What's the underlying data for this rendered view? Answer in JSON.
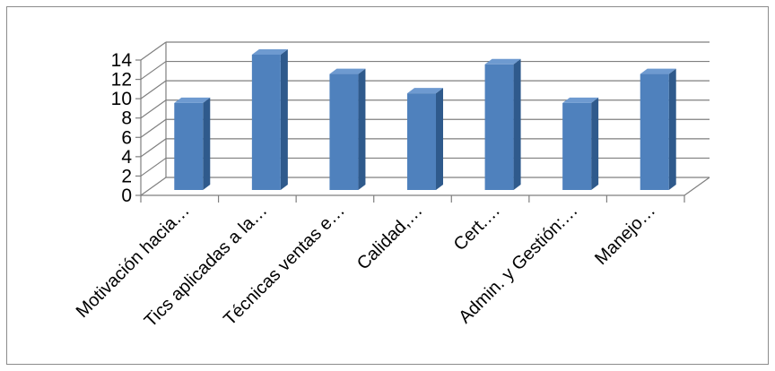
{
  "chart_data": {
    "type": "bar",
    "style": "3d-column",
    "categories": [
      "Motivación hacia…",
      "Tics aplicadas a la…",
      "Técnicas ventas e…",
      "Calidad,…",
      "Cert.…",
      "Admin. y Gestión:…",
      "Manejo…"
    ],
    "values": [
      9,
      14,
      12,
      10,
      13,
      9,
      12
    ],
    "yticks": [
      "0",
      "2",
      "4",
      "6",
      "8",
      "10",
      "12",
      "14"
    ],
    "ylim": [
      0,
      14
    ],
    "grid": true,
    "legend": "none",
    "colors": {
      "bar_front": "#4F81BD",
      "bar_side": "#2F5A8C",
      "bar_top": "#6E9AD0",
      "grid": "#7f7f7f"
    }
  }
}
